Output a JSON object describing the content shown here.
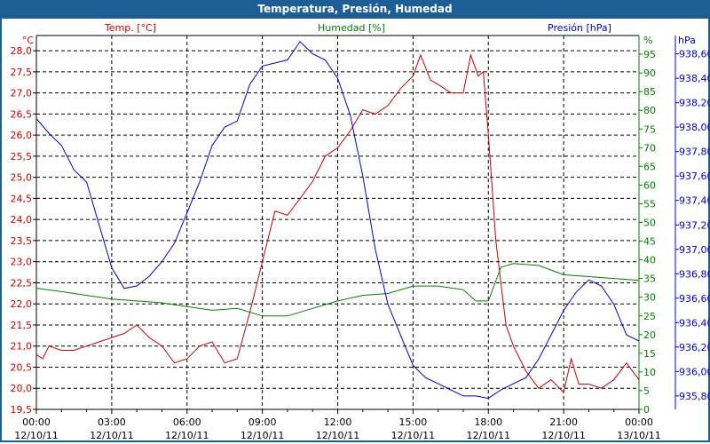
{
  "title": "Temperatura, Presión, Humedad",
  "chart_data": {
    "type": "line",
    "title": "Temperatura, Presión, Humedad",
    "x_ticks": [
      {
        "time": "00:00",
        "date": "12/10/11",
        "h": 0
      },
      {
        "time": "03:00",
        "date": "12/10/11",
        "h": 3
      },
      {
        "time": "06:00",
        "date": "12/10/11",
        "h": 6
      },
      {
        "time": "09:00",
        "date": "12/10/11",
        "h": 9
      },
      {
        "time": "12:00",
        "date": "12/10/11",
        "h": 12
      },
      {
        "time": "15:00",
        "date": "12/10/11",
        "h": 15
      },
      {
        "time": "18:00",
        "date": "12/10/11",
        "h": 18
      },
      {
        "time": "21:00",
        "date": "12/10/11",
        "h": 21
      },
      {
        "time": "00:00",
        "date": "13/10/11",
        "h": 24
      }
    ],
    "xlim": [
      0,
      24
    ],
    "axes": {
      "temp": {
        "unit": "°C",
        "ylim": [
          19.5,
          28.36
        ],
        "ticks": [
          "19,5",
          "20,0",
          "20,5",
          "21,0",
          "21,5",
          "22,0",
          "22,5",
          "23,0",
          "23,5",
          "24,0",
          "24,5",
          "25,0",
          "25,5",
          "26,0",
          "26,5",
          "27,0",
          "27,5",
          "28,0"
        ],
        "tick_start": 19.5,
        "tick_step": 0.5
      },
      "hum": {
        "unit": "%",
        "ylim": [
          0,
          100
        ],
        "ticks": [
          "0",
          "5",
          "10",
          "15",
          "20",
          "25",
          "30",
          "35",
          "40",
          "45",
          "50",
          "55",
          "60",
          "65",
          "70",
          "75",
          "80",
          "85",
          "90",
          "95"
        ],
        "tick_start": 0,
        "tick_step": 5
      },
      "pres": {
        "unit": "hPa",
        "ylim": [
          935.69,
          938.75
        ],
        "ticks": [
          "935,80",
          "936,00",
          "936,20",
          "936,40",
          "936,60",
          "936,80",
          "937,00",
          "937,20",
          "937,40",
          "937,60",
          "937,80",
          "938,00",
          "938,20",
          "938,40",
          "938,60"
        ],
        "tick_start": 935.8,
        "tick_step": 0.2
      }
    },
    "series": [
      {
        "name": "Temp. [°C]",
        "axis": "temp",
        "color": "#cc0000",
        "x": [
          0,
          0.25,
          0.5,
          1,
          1.5,
          2,
          2.5,
          3,
          3.5,
          4,
          4.5,
          5,
          5.5,
          6,
          6.5,
          7,
          7.5,
          8,
          8.5,
          9,
          9.5,
          10,
          10.5,
          11,
          11.5,
          12,
          12.5,
          13,
          13.5,
          14,
          14.5,
          15,
          15.3,
          15.7,
          16,
          16.5,
          17,
          17.3,
          17.6,
          17.8,
          18,
          18.3,
          18.7,
          19,
          19.5,
          20,
          20.5,
          21,
          21.3,
          21.6,
          22,
          22.5,
          23,
          23.5,
          24
        ],
        "values": [
          20.8,
          20.7,
          21.0,
          20.9,
          20.9,
          21.0,
          21.1,
          21.2,
          21.3,
          21.5,
          21.2,
          21.0,
          20.6,
          20.7,
          21.0,
          21.1,
          20.6,
          20.7,
          21.8,
          23.0,
          24.2,
          24.1,
          24.5,
          24.9,
          25.5,
          25.7,
          26.1,
          26.6,
          26.5,
          26.7,
          27.1,
          27.4,
          27.9,
          27.3,
          27.2,
          27.0,
          27.0,
          27.9,
          27.4,
          27.5,
          26.0,
          23.5,
          21.5,
          21.0,
          20.4,
          20.0,
          20.2,
          19.9,
          20.7,
          20.1,
          20.1,
          20.0,
          20.2,
          20.6,
          20.2
        ]
      },
      {
        "name": "Humedad [%]",
        "axis": "hum",
        "color": "#008000",
        "x": [
          0,
          1,
          2,
          3,
          4,
          5,
          6,
          7,
          8,
          9,
          10,
          11,
          12,
          13,
          14,
          15,
          16,
          17,
          17.5,
          18,
          18.5,
          19,
          20,
          21,
          22,
          23,
          24
        ],
        "values": [
          32.4,
          31.5,
          30.5,
          29.5,
          29,
          28.5,
          27.5,
          26.5,
          27,
          25,
          25,
          27,
          29,
          30.5,
          31,
          33,
          33,
          32,
          29,
          29,
          38,
          39,
          38.5,
          36,
          35.5,
          35,
          34.5
        ]
      },
      {
        "name": "Presión [hPa]",
        "axis": "pres",
        "color": "#0000cc",
        "x": [
          0,
          0.5,
          1,
          1.5,
          2,
          2.5,
          3,
          3.5,
          4,
          4.5,
          5,
          5.5,
          6,
          6.5,
          7,
          7.5,
          8,
          8.5,
          9,
          10,
          10.5,
          11,
          11.5,
          12,
          12.5,
          13,
          13.5,
          14,
          14.5,
          15,
          15.5,
          16,
          16.5,
          17,
          17.5,
          18,
          18.5,
          19,
          19.5,
          20,
          20.5,
          21,
          21.5,
          22,
          22.5,
          23,
          23.5,
          24
        ],
        "values": [
          938.07,
          937.95,
          937.85,
          937.65,
          937.55,
          937.2,
          936.85,
          936.68,
          936.7,
          936.78,
          936.9,
          937.05,
          937.3,
          937.55,
          937.85,
          938.0,
          938.05,
          938.35,
          938.5,
          938.55,
          938.7,
          938.6,
          938.55,
          938.4,
          938.1,
          937.6,
          937.0,
          936.55,
          936.3,
          936.05,
          935.95,
          935.9,
          935.85,
          935.8,
          935.8,
          935.78,
          935.85,
          935.9,
          935.95,
          936.1,
          936.3,
          936.5,
          936.65,
          936.75,
          936.7,
          936.55,
          936.3,
          936.25
        ]
      }
    ]
  }
}
